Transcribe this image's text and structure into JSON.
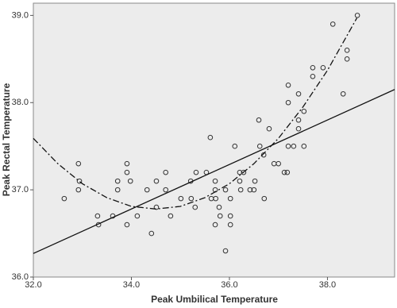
{
  "chart_data": {
    "type": "scatter",
    "x_label": "Peak Umbilical Temperature",
    "y_label": "Peak Rectal Temperature",
    "xlim": [
      32,
      39.37
    ],
    "ylim": [
      36,
      39.14
    ],
    "xticks": [
      {
        "value": 32,
        "label": "32.0"
      },
      {
        "value": 34,
        "label": "34.0"
      },
      {
        "value": 36,
        "label": "36.0"
      },
      {
        "value": 38,
        "label": "38.0"
      }
    ],
    "yticks": [
      {
        "value": 36,
        "label": "36.0"
      },
      {
        "value": 37,
        "label": "37.0"
      },
      {
        "value": 38,
        "label": "38.0"
      },
      {
        "value": 39,
        "label": "39.0"
      }
    ],
    "background": "#ececec",
    "point_color": "#333333",
    "series": [
      {
        "x": [
          32.63,
          32.92,
          32.92,
          32.94,
          33.31,
          33.33,
          33.62,
          33.72,
          33.72,
          33.91,
          33.91,
          33.91,
          33.98,
          34.12,
          34.32,
          34.41,
          34.51,
          34.51,
          34.7,
          34.7,
          34.8,
          35.01,
          35.21,
          35.22,
          35.3,
          35.32,
          35.53,
          35.61,
          35.63,
          35.71,
          35.71,
          35.71,
          35.72,
          35.79,
          35.81,
          35.92,
          35.92,
          36.02,
          36.02,
          36.02,
          36.11,
          36.21,
          36.21,
          36.23,
          36.29,
          36.42,
          36.5,
          36.52,
          36.6,
          36.62,
          36.7,
          36.71,
          36.81,
          36.91,
          37.0,
          37.12,
          37.18,
          37.2,
          37.2,
          37.2,
          37.31,
          37.41,
          37.41,
          37.41,
          37.52,
          37.52,
          37.7,
          37.7,
          37.91,
          38.11,
          38.32,
          38.4,
          38.4,
          38.61
        ],
        "values": [
          36.9,
          37.3,
          37.0,
          37.1,
          36.7,
          36.6,
          36.7,
          37.1,
          37.0,
          37.3,
          37.2,
          36.6,
          37.1,
          36.7,
          37.0,
          36.5,
          37.1,
          36.8,
          37.2,
          37.0,
          36.7,
          36.9,
          37.1,
          36.9,
          36.8,
          37.2,
          37.2,
          37.6,
          36.9,
          37.1,
          37.0,
          36.6,
          36.9,
          36.8,
          36.7,
          36.3,
          37.0,
          36.9,
          36.7,
          36.6,
          37.5,
          37.1,
          37.2,
          37.0,
          37.2,
          37.0,
          37.0,
          37.1,
          37.8,
          37.5,
          37.4,
          36.9,
          37.7,
          37.3,
          37.3,
          37.2,
          37.2,
          38.0,
          38.2,
          37.5,
          37.5,
          38.1,
          37.7,
          37.8,
          37.9,
          37.5,
          38.3,
          38.4,
          38.4,
          38.9,
          38.1,
          38.6,
          38.5,
          39.0
        ]
      }
    ],
    "fits": [
      {
        "style": "solid",
        "x": [
          32,
          39.37
        ],
        "values": [
          36.27,
          38.15
        ]
      },
      {
        "style": "dashdot",
        "x": [
          32,
          32.5,
          33,
          33.5,
          34,
          34.5,
          35,
          35.5,
          36,
          36.5,
          37,
          37.5,
          38,
          38.6
        ],
        "values": [
          37.59,
          37.3,
          37.07,
          36.91,
          36.81,
          36.78,
          36.81,
          36.91,
          37.07,
          37.3,
          37.59,
          37.95,
          38.37,
          38.97
        ]
      }
    ]
  }
}
